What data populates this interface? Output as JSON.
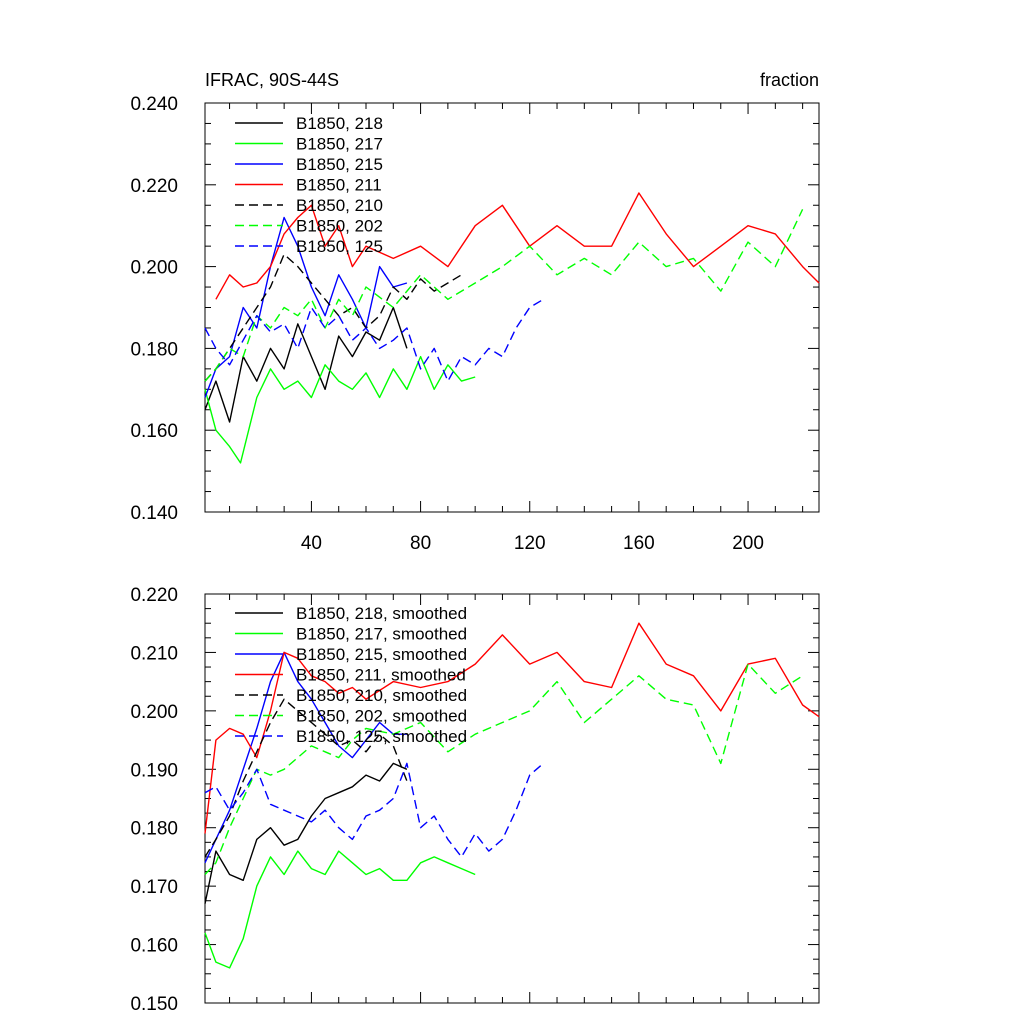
{
  "chart_data": [
    {
      "type": "line",
      "title": "IFRAC, 90S-44S",
      "units": "fraction",
      "xlim": [
        1,
        226
      ],
      "ylim": [
        0.14,
        0.24
      ],
      "xticks": [
        40,
        80,
        120,
        160,
        200
      ],
      "yticks": [
        0.14,
        0.16,
        0.18,
        0.2,
        0.22,
        0.24
      ],
      "ytick_labels": [
        "0.140",
        "0.160",
        "0.180",
        "0.200",
        "0.220",
        "0.240"
      ],
      "legend_position": "top-left",
      "grid": false,
      "series": [
        {
          "name": "B1850, 218",
          "color": "#000000",
          "dash": "solid",
          "x": [
            1,
            5,
            10,
            15,
            20,
            25,
            30,
            35,
            40,
            45,
            50,
            55,
            60,
            65,
            70,
            75
          ],
          "y": [
            0.165,
            0.172,
            0.162,
            0.178,
            0.172,
            0.18,
            0.175,
            0.186,
            0.178,
            0.17,
            0.183,
            0.178,
            0.184,
            0.182,
            0.19,
            0.18
          ]
        },
        {
          "name": "B1850, 217",
          "color": "#00ff00",
          "dash": "solid",
          "x": [
            1,
            5,
            10,
            14,
            20,
            25,
            30,
            35,
            40,
            45,
            50,
            55,
            60,
            65,
            70,
            75,
            80,
            85,
            90,
            95,
            100
          ],
          "y": [
            0.17,
            0.16,
            0.156,
            0.152,
            0.168,
            0.175,
            0.17,
            0.172,
            0.168,
            0.176,
            0.172,
            0.17,
            0.174,
            0.168,
            0.175,
            0.17,
            0.178,
            0.17,
            0.176,
            0.172,
            0.173
          ]
        },
        {
          "name": "B1850, 215",
          "color": "#0000ff",
          "dash": "solid",
          "x": [
            1,
            5,
            10,
            15,
            20,
            25,
            30,
            35,
            40,
            45,
            50,
            55,
            60,
            65,
            70,
            75
          ],
          "y": [
            0.168,
            0.175,
            0.178,
            0.19,
            0.185,
            0.2,
            0.212,
            0.205,
            0.195,
            0.188,
            0.198,
            0.192,
            0.185,
            0.2,
            0.195,
            0.196
          ]
        },
        {
          "name": "B1850, 211",
          "color": "#ff0000",
          "dash": "solid",
          "x": [
            5,
            10,
            15,
            20,
            25,
            30,
            35,
            40,
            45,
            50,
            55,
            60,
            70,
            80,
            90,
            100,
            110,
            120,
            130,
            140,
            150,
            160,
            170,
            180,
            190,
            200,
            210,
            220,
            226
          ],
          "y": [
            0.192,
            0.198,
            0.195,
            0.196,
            0.2,
            0.208,
            0.212,
            0.215,
            0.205,
            0.21,
            0.2,
            0.205,
            0.202,
            0.205,
            0.2,
            0.21,
            0.215,
            0.205,
            0.21,
            0.205,
            0.205,
            0.218,
            0.208,
            0.2,
            0.205,
            0.21,
            0.208,
            0.2,
            0.196
          ]
        },
        {
          "name": "B1850, 210",
          "color": "#000000",
          "dash": "dashed",
          "x": [
            1,
            5,
            10,
            15,
            20,
            25,
            30,
            35,
            40,
            45,
            50,
            55,
            60,
            65,
            70,
            75,
            80,
            85,
            90,
            95
          ],
          "y": [
            0.172,
            0.175,
            0.18,
            0.185,
            0.19,
            0.195,
            0.203,
            0.2,
            0.196,
            0.192,
            0.188,
            0.19,
            0.185,
            0.188,
            0.195,
            0.192,
            0.197,
            0.194,
            0.196,
            0.198
          ]
        },
        {
          "name": "B1850, 202",
          "color": "#00ff00",
          "dash": "dashed",
          "x": [
            1,
            5,
            10,
            15,
            20,
            25,
            30,
            35,
            40,
            45,
            50,
            55,
            60,
            70,
            80,
            90,
            100,
            110,
            120,
            130,
            140,
            150,
            160,
            170,
            180,
            190,
            200,
            210,
            220
          ],
          "y": [
            0.172,
            0.175,
            0.18,
            0.178,
            0.188,
            0.185,
            0.19,
            0.188,
            0.192,
            0.185,
            0.192,
            0.188,
            0.195,
            0.19,
            0.198,
            0.192,
            0.196,
            0.2,
            0.205,
            0.198,
            0.202,
            0.198,
            0.206,
            0.2,
            0.202,
            0.194,
            0.206,
            0.2,
            0.214
          ]
        },
        {
          "name": "B1850, 125",
          "color": "#0000ff",
          "dash": "dashed",
          "x": [
            1,
            5,
            10,
            15,
            20,
            25,
            30,
            35,
            40,
            45,
            50,
            55,
            60,
            65,
            70,
            75,
            80,
            85,
            90,
            95,
            100,
            105,
            110,
            115,
            120,
            125
          ],
          "y": [
            0.185,
            0.18,
            0.176,
            0.182,
            0.188,
            0.184,
            0.186,
            0.18,
            0.19,
            0.185,
            0.188,
            0.182,
            0.185,
            0.18,
            0.182,
            0.185,
            0.175,
            0.18,
            0.172,
            0.178,
            0.176,
            0.18,
            0.178,
            0.185,
            0.19,
            0.192
          ]
        }
      ]
    },
    {
      "type": "line",
      "title": "",
      "xlim": [
        1,
        226
      ],
      "ylim": [
        0.15,
        0.22
      ],
      "xticks": [
        40,
        80,
        120,
        160,
        200
      ],
      "yticks": [
        0.15,
        0.16,
        0.17,
        0.18,
        0.19,
        0.2,
        0.21,
        0.22
      ],
      "ytick_labels": [
        "0.150",
        "0.160",
        "0.170",
        "0.180",
        "0.190",
        "0.200",
        "0.210",
        "0.220"
      ],
      "legend_position": "top-left",
      "grid": false,
      "series": [
        {
          "name": "B1850, 218, smoothed",
          "color": "#000000",
          "dash": "solid",
          "x": [
            1,
            5,
            10,
            15,
            20,
            25,
            30,
            35,
            40,
            45,
            50,
            55,
            60,
            65,
            70,
            75
          ],
          "y": [
            0.167,
            0.176,
            0.172,
            0.171,
            0.178,
            0.18,
            0.177,
            0.178,
            0.182,
            0.185,
            0.186,
            0.187,
            0.189,
            0.188,
            0.191,
            0.19
          ]
        },
        {
          "name": "B1850, 217, smoothed",
          "color": "#00ff00",
          "dash": "solid",
          "x": [
            1,
            5,
            10,
            15,
            20,
            25,
            30,
            35,
            40,
            45,
            50,
            55,
            60,
            65,
            70,
            75,
            80,
            85,
            90,
            95,
            100
          ],
          "y": [
            0.162,
            0.157,
            0.156,
            0.161,
            0.17,
            0.175,
            0.172,
            0.176,
            0.173,
            0.172,
            0.176,
            0.174,
            0.172,
            0.173,
            0.171,
            0.171,
            0.174,
            0.175,
            0.174,
            0.173,
            0.172
          ]
        },
        {
          "name": "B1850, 215, smoothed",
          "color": "#0000ff",
          "dash": "solid",
          "x": [
            1,
            5,
            10,
            15,
            20,
            25,
            30,
            35,
            40,
            45,
            50,
            55,
            60,
            65,
            70,
            75
          ],
          "y": [
            0.174,
            0.178,
            0.183,
            0.19,
            0.197,
            0.205,
            0.21,
            0.205,
            0.202,
            0.198,
            0.194,
            0.192,
            0.195,
            0.198,
            0.196,
            0.196
          ]
        },
        {
          "name": "B1850, 211, smoothed",
          "color": "#ff0000",
          "dash": "solid",
          "x": [
            1,
            5,
            10,
            15,
            20,
            25,
            30,
            35,
            40,
            45,
            50,
            55,
            60,
            70,
            80,
            90,
            100,
            110,
            120,
            130,
            140,
            150,
            160,
            170,
            180,
            190,
            200,
            210,
            220,
            226
          ],
          "y": [
            0.179,
            0.195,
            0.197,
            0.196,
            0.192,
            0.2,
            0.21,
            0.209,
            0.206,
            0.205,
            0.203,
            0.204,
            0.202,
            0.205,
            0.204,
            0.205,
            0.208,
            0.213,
            0.208,
            0.21,
            0.205,
            0.204,
            0.215,
            0.208,
            0.206,
            0.2,
            0.208,
            0.209,
            0.201,
            0.199
          ]
        },
        {
          "name": "B1850, 210, smoothed",
          "color": "#000000",
          "dash": "dashed",
          "x": [
            1,
            5,
            10,
            15,
            20,
            25,
            30,
            35,
            40,
            45,
            50,
            55,
            60,
            65,
            70,
            75
          ],
          "y": [
            0.175,
            0.178,
            0.182,
            0.188,
            0.193,
            0.198,
            0.202,
            0.2,
            0.198,
            0.196,
            0.194,
            0.195,
            0.193,
            0.196,
            0.194,
            0.188
          ]
        },
        {
          "name": "B1850, 202, smoothed",
          "color": "#00ff00",
          "dash": "dashed",
          "x": [
            1,
            5,
            10,
            15,
            20,
            25,
            30,
            35,
            40,
            45,
            50,
            55,
            60,
            70,
            80,
            90,
            100,
            110,
            120,
            130,
            140,
            150,
            160,
            170,
            180,
            190,
            200,
            210,
            220
          ],
          "y": [
            0.172,
            0.174,
            0.18,
            0.185,
            0.19,
            0.189,
            0.19,
            0.192,
            0.194,
            0.193,
            0.192,
            0.195,
            0.197,
            0.196,
            0.198,
            0.193,
            0.196,
            0.198,
            0.2,
            0.205,
            0.198,
            0.202,
            0.206,
            0.202,
            0.201,
            0.191,
            0.208,
            0.203,
            0.206
          ]
        },
        {
          "name": "B1850, 125, smoothed",
          "color": "#0000ff",
          "dash": "dashed",
          "x": [
            1,
            5,
            10,
            15,
            20,
            25,
            30,
            35,
            40,
            45,
            50,
            55,
            60,
            65,
            70,
            75,
            80,
            85,
            90,
            95,
            100,
            105,
            110,
            115,
            120,
            125
          ],
          "y": [
            0.186,
            0.187,
            0.183,
            0.186,
            0.19,
            0.184,
            0.183,
            0.182,
            0.181,
            0.183,
            0.18,
            0.178,
            0.182,
            0.183,
            0.185,
            0.191,
            0.18,
            0.182,
            0.178,
            0.175,
            0.179,
            0.176,
            0.178,
            0.183,
            0.189,
            0.191
          ]
        }
      ]
    }
  ]
}
